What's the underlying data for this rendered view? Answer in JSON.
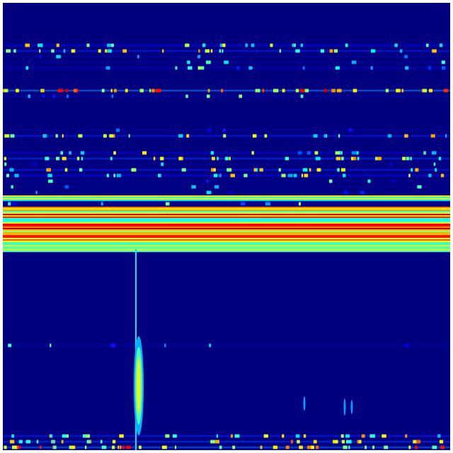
{
  "chart_data": {
    "type": "heatmap",
    "title": "",
    "xlabel": "",
    "ylabel": "",
    "colormap": "jet",
    "background_color": "#00007f",
    "grid": false,
    "legend": "none",
    "value_range": [
      0,
      1
    ],
    "row_intensity": [
      0.02,
      0.02,
      0.02,
      0.02,
      0.02,
      0.02,
      0.02,
      0.25,
      0.3,
      0.05,
      0.05,
      0.15,
      0.03,
      0.03,
      0.03,
      0.5,
      0.1,
      0.03,
      0.03,
      0.03,
      0.03,
      0.03,
      0.05,
      0.3,
      0.03,
      0.03,
      0.2,
      0.35,
      0.05,
      0.3,
      0.25,
      0.05,
      0.05,
      0.05,
      0.5,
      0.08,
      0.6,
      0.75,
      0.55,
      0.8,
      0.6,
      0.7,
      0.55,
      0.45,
      0.02,
      0.02,
      0.02,
      0.02,
      0.02,
      0.02,
      0.02,
      0.02,
      0.02,
      0.02,
      0.02,
      0.02,
      0.02,
      0.02,
      0.02,
      0.02,
      0.08,
      0.02,
      0.02,
      0.02,
      0.02,
      0.02,
      0.02,
      0.02,
      0.02,
      0.02,
      0.02,
      0.02,
      0.02,
      0.02,
      0.02,
      0.02,
      0.3,
      0.35,
      0.45
    ]
  }
}
